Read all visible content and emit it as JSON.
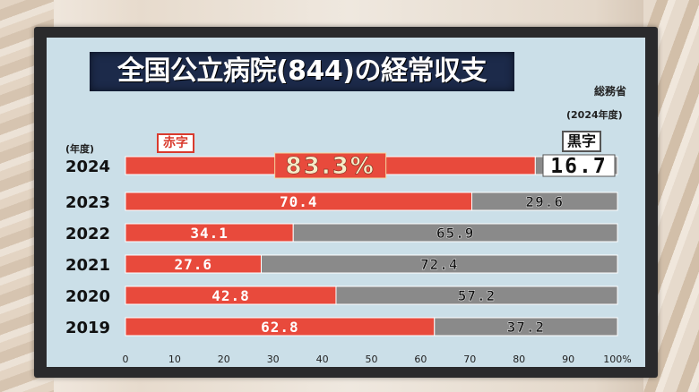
{
  "title": "全国公立病院(844)の経常収支",
  "source": "総務省",
  "note": "(2024年度)",
  "year_unit": "(年度)",
  "chart_data": {
    "type": "bar",
    "stacked": true,
    "orientation": "horizontal",
    "categories": [
      "2024",
      "2023",
      "2022",
      "2021",
      "2020",
      "2019"
    ],
    "series": [
      {
        "name": "赤字",
        "values": [
          83.3,
          70.4,
          34.1,
          27.6,
          42.8,
          62.8
        ],
        "color": "#e84a3c"
      },
      {
        "name": "黒字",
        "values": [
          16.7,
          29.6,
          65.9,
          72.4,
          57.2,
          37.2
        ],
        "color": "#8a8a8a"
      }
    ],
    "value_labels": {
      "deficit": [
        "83.3%",
        "70.4",
        "34.1",
        "27.6",
        "42.8",
        "62.8"
      ],
      "surplus": [
        "16.7",
        "29.6",
        "65.9",
        "72.4",
        "57.2",
        "37.2"
      ]
    },
    "xticks": [
      "0",
      "10",
      "20",
      "30",
      "40",
      "50",
      "60",
      "70",
      "80",
      "90",
      "100%"
    ],
    "xlim": [
      0,
      100
    ]
  }
}
